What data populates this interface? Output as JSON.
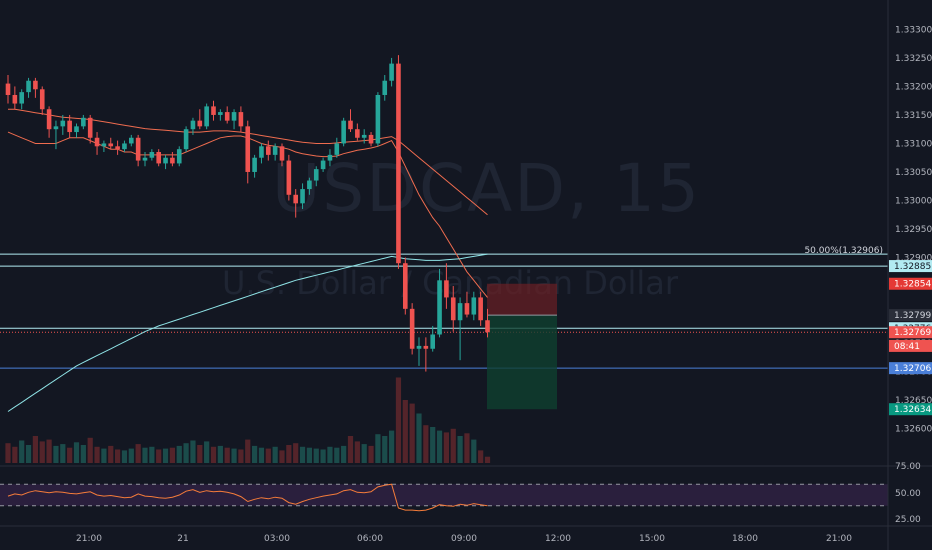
{
  "symbol": {
    "ticker": "USDCAD",
    "interval": "15",
    "watermark_main": "USDCAD, 15",
    "watermark_desc": "U.S. Dollar / Canadian Dollar"
  },
  "colors": {
    "background": "#131722",
    "up": "#26a69a",
    "down": "#ef5350",
    "ma_red": "#ef6c4f",
    "ma_cyan": "#8fe3e6",
    "rsi_line": "#f57c3a",
    "rsi_band": "#2a1f3d"
  },
  "price_axis": {
    "labels": [
      "1.33300",
      "1.33250",
      "1.33200",
      "1.33150",
      "1.33100",
      "1.33050",
      "1.33000",
      "1.32950",
      "1.32900",
      "1.32850",
      "1.32800",
      "1.32750",
      "1.32700",
      "1.32650",
      "1.32600"
    ],
    "min": 1.3258,
    "max": 1.3332
  },
  "price_tags": [
    {
      "name": "level-tag-1",
      "text": "1.32885",
      "value": 1.32885,
      "bg": "#b2ebf2",
      "fg": "#131722"
    },
    {
      "name": "sl-tag",
      "text": "1.32854",
      "value": 1.32854,
      "bg": "#e53935",
      "fg": "#ffffff"
    },
    {
      "name": "entry-tag",
      "text": "1.32799",
      "value": 1.32799,
      "bg": "#2a2e39",
      "fg": "#d1d4dc"
    },
    {
      "name": "level-tag-2",
      "text": "1.32776",
      "value": 1.32776,
      "bg": "#b2ebf2",
      "fg": "#131722"
    },
    {
      "name": "last-price-tag",
      "text": "1.32769",
      "value": 1.32769,
      "bg": "#ef5350",
      "fg": "#ffffff"
    },
    {
      "name": "countdown-tag",
      "text": "08:41",
      "value": 1.32745,
      "bg": "#ef5350",
      "fg": "#ffffff"
    },
    {
      "name": "level-tag-3",
      "text": "1.32706",
      "value": 1.32706,
      "bg": "#4a7fd8",
      "fg": "#ffffff"
    },
    {
      "name": "tp-tag",
      "text": "1.32634",
      "value": 1.32634,
      "bg": "#089981",
      "fg": "#ffffff"
    }
  ],
  "horizontal_levels": [
    {
      "value": 1.32906,
      "color": "#b2ebf2",
      "label": "50.00%(1.32906)"
    },
    {
      "value": 1.32885,
      "color": "#b2ebf2",
      "label": ""
    },
    {
      "value": 1.32776,
      "color": "#b2ebf2",
      "label": ""
    },
    {
      "value": 1.32706,
      "color": "#4a7fd8",
      "label": ""
    }
  ],
  "last_price": 1.32769,
  "rsi_axis": {
    "labels": [
      "75.00",
      "50.00",
      "25.00"
    ],
    "upper": 70,
    "lower": 30
  },
  "time_axis": {
    "labels": [
      "21:00",
      "21",
      "03:00",
      "06:00",
      "09:00",
      "12:00",
      "15:00",
      "18:00",
      "21:00"
    ]
  },
  "chart_data": {
    "type": "candlestick",
    "symbol": "USDCAD",
    "interval_minutes": 15,
    "y_range": [
      1.3258,
      1.3332
    ],
    "candles": [
      [
        1.33205,
        1.3322,
        1.3317,
        1.33185
      ],
      [
        1.33185,
        1.332,
        1.3316,
        1.3317
      ],
      [
        1.3317,
        1.33195,
        1.3316,
        1.3319
      ],
      [
        1.3319,
        1.33215,
        1.3318,
        1.3321
      ],
      [
        1.3321,
        1.33215,
        1.3318,
        1.33195
      ],
      [
        1.33195,
        1.332,
        1.3315,
        1.3316
      ],
      [
        1.3316,
        1.33165,
        1.3311,
        1.33125
      ],
      [
        1.33125,
        1.3314,
        1.3309,
        1.3313
      ],
      [
        1.3313,
        1.3315,
        1.33115,
        1.3314
      ],
      [
        1.3314,
        1.3315,
        1.3311,
        1.3312
      ],
      [
        1.3312,
        1.33135,
        1.3311,
        1.3313
      ],
      [
        1.3313,
        1.3315,
        1.33125,
        1.33145
      ],
      [
        1.33145,
        1.3315,
        1.331,
        1.3311
      ],
      [
        1.3311,
        1.3312,
        1.3308,
        1.33095
      ],
      [
        1.33095,
        1.33105,
        1.33085,
        1.331
      ],
      [
        1.331,
        1.3311,
        1.3309,
        1.33095
      ],
      [
        1.33095,
        1.33105,
        1.3308,
        1.3309
      ],
      [
        1.3309,
        1.33105,
        1.33085,
        1.331
      ],
      [
        1.331,
        1.33115,
        1.33095,
        1.3311
      ],
      [
        1.3311,
        1.33115,
        1.3306,
        1.3307
      ],
      [
        1.3307,
        1.33085,
        1.3306,
        1.33075
      ],
      [
        1.33075,
        1.3309,
        1.3307,
        1.33085
      ],
      [
        1.33085,
        1.3309,
        1.3306,
        1.33065
      ],
      [
        1.33065,
        1.3308,
        1.33055,
        1.33075
      ],
      [
        1.33075,
        1.33085,
        1.3306,
        1.33065
      ],
      [
        1.33065,
        1.33095,
        1.3306,
        1.3309
      ],
      [
        1.3309,
        1.3313,
        1.33085,
        1.33125
      ],
      [
        1.33125,
        1.33145,
        1.33115,
        1.3314
      ],
      [
        1.3314,
        1.3316,
        1.33125,
        1.3313
      ],
      [
        1.3313,
        1.3317,
        1.33125,
        1.33165
      ],
      [
        1.33165,
        1.33175,
        1.3314,
        1.3315
      ],
      [
        1.3315,
        1.3316,
        1.3314,
        1.33155
      ],
      [
        1.33155,
        1.33165,
        1.33135,
        1.3314
      ],
      [
        1.3314,
        1.3316,
        1.33125,
        1.33155
      ],
      [
        1.33155,
        1.33165,
        1.3312,
        1.3313
      ],
      [
        1.3313,
        1.3314,
        1.3303,
        1.3305
      ],
      [
        1.3305,
        1.3308,
        1.3304,
        1.33075
      ],
      [
        1.33075,
        1.331,
        1.33065,
        1.33095
      ],
      [
        1.33095,
        1.33105,
        1.3307,
        1.3308
      ],
      [
        1.3308,
        1.331,
        1.3307,
        1.33095
      ],
      [
        1.33095,
        1.331,
        1.3306,
        1.3307
      ],
      [
        1.3307,
        1.3308,
        1.33,
        1.3301
      ],
      [
        1.3301,
        1.3302,
        1.3297,
        1.32995
      ],
      [
        1.32995,
        1.3303,
        1.32985,
        1.3302
      ],
      [
        1.3302,
        1.3304,
        1.3301,
        1.33035
      ],
      [
        1.33035,
        1.3306,
        1.33025,
        1.33055
      ],
      [
        1.33055,
        1.33075,
        1.3305,
        1.3307
      ],
      [
        1.3307,
        1.3309,
        1.3306,
        1.3308
      ],
      [
        1.3308,
        1.3311,
        1.33075,
        1.331
      ],
      [
        1.331,
        1.33145,
        1.33095,
        1.3314
      ],
      [
        1.3314,
        1.3316,
        1.3312,
        1.33125
      ],
      [
        1.33125,
        1.33135,
        1.33105,
        1.3311
      ],
      [
        1.3311,
        1.33125,
        1.331,
        1.33115
      ],
      [
        1.33115,
        1.3312,
        1.33095,
        1.331
      ],
      [
        1.331,
        1.3319,
        1.33095,
        1.33185
      ],
      [
        1.33185,
        1.3322,
        1.33175,
        1.3321
      ],
      [
        1.3321,
        1.3325,
        1.332,
        1.3324
      ],
      [
        1.3324,
        1.33255,
        1.3288,
        1.3289
      ],
      [
        1.3289,
        1.329,
        1.328,
        1.3281
      ],
      [
        1.3281,
        1.3282,
        1.3273,
        1.3274
      ],
      [
        1.3274,
        1.3276,
        1.3271,
        1.32745
      ],
      [
        1.32745,
        1.3276,
        1.327,
        1.3274
      ],
      [
        1.3274,
        1.3278,
        1.32735,
        1.32765
      ],
      [
        1.32765,
        1.3288,
        1.3276,
        1.3286
      ],
      [
        1.3286,
        1.3289,
        1.3281,
        1.3283
      ],
      [
        1.3283,
        1.3285,
        1.3277,
        1.3279
      ],
      [
        1.3279,
        1.3283,
        1.3272,
        1.3282
      ],
      [
        1.3282,
        1.3284,
        1.32795,
        1.328
      ],
      [
        1.328,
        1.3284,
        1.3279,
        1.3283
      ],
      [
        1.3283,
        1.3284,
        1.3278,
        1.3279
      ],
      [
        1.3279,
        1.3281,
        1.3276,
        1.32769
      ]
    ],
    "volume": [
      22,
      18,
      25,
      20,
      30,
      24,
      26,
      19,
      21,
      17,
      23,
      20,
      28,
      18,
      16,
      19,
      15,
      14,
      16,
      21,
      17,
      18,
      15,
      16,
      17,
      19,
      22,
      25,
      20,
      24,
      18,
      19,
      17,
      16,
      15,
      26,
      19,
      17,
      16,
      18,
      14,
      20,
      22,
      18,
      17,
      16,
      15,
      18,
      17,
      19,
      30,
      24,
      21,
      19,
      32,
      30,
      36,
      95,
      70,
      66,
      55,
      42,
      40,
      36,
      34,
      38,
      30,
      33,
      26,
      14,
      7
    ],
    "ma_red": [
      1.3312,
      1.33115,
      1.3311,
      1.33105,
      1.331,
      1.331,
      1.331,
      1.331,
      1.33105,
      1.3311,
      1.3311,
      1.3311,
      1.33105,
      1.331,
      1.33095,
      1.3309,
      1.3309,
      1.33085,
      1.33085,
      1.3308,
      1.3308,
      1.3308,
      1.3308,
      1.3308,
      1.3308,
      1.3308,
      1.33085,
      1.3309,
      1.33095,
      1.331,
      1.33105,
      1.3311,
      1.33112,
      1.33113,
      1.33113,
      1.3311,
      1.33105,
      1.331,
      1.33097,
      1.33095,
      1.33093,
      1.3309,
      1.33085,
      1.33082,
      1.3308,
      1.33078,
      1.33077,
      1.33077,
      1.33078,
      1.33082,
      1.33085,
      1.33088,
      1.3309,
      1.33092,
      1.33095,
      1.331,
      1.33105,
      1.33085,
      1.3306,
      1.33035,
      1.3301,
      1.3299,
      1.3297,
      1.32955,
      1.32935,
      1.32915,
      1.32895,
      1.32875,
      1.3286,
      1.32845,
      1.3283
    ],
    "ma_orange": [
      1.3316,
      1.3316,
      1.33158,
      1.33156,
      1.33154,
      1.33152,
      1.3315,
      1.33148,
      1.33146,
      1.33145,
      1.33144,
      1.33143,
      1.33142,
      1.3314,
      1.33138,
      1.33136,
      1.33134,
      1.33132,
      1.3313,
      1.33128,
      1.33126,
      1.33125,
      1.33124,
      1.33123,
      1.33122,
      1.33121,
      1.3312,
      1.3312,
      1.3312,
      1.33121,
      1.33122,
      1.33122,
      1.33122,
      1.33121,
      1.3312,
      1.33118,
      1.33116,
      1.33114,
      1.33112,
      1.3311,
      1.33108,
      1.33106,
      1.33104,
      1.33102,
      1.33101,
      1.331,
      1.331,
      1.331,
      1.33101,
      1.33102,
      1.33103,
      1.33104,
      1.33105,
      1.33106,
      1.33108,
      1.3311,
      1.33112,
      1.33105,
      1.33095,
      1.33085,
      1.33075,
      1.33065,
      1.33055,
      1.33045,
      1.33035,
      1.33025,
      1.33015,
      1.33005,
      1.32995,
      1.32985,
      1.32975
    ],
    "ma_cyan": [
      1.3263,
      1.32638,
      1.32646,
      1.32654,
      1.32662,
      1.3267,
      1.32678,
      1.32686,
      1.32694,
      1.32702,
      1.3271,
      1.32716,
      1.32722,
      1.32728,
      1.32734,
      1.3274,
      1.32746,
      1.32752,
      1.32758,
      1.32764,
      1.3277,
      1.32775,
      1.3278,
      1.32784,
      1.32788,
      1.32792,
      1.32796,
      1.328,
      1.32804,
      1.32808,
      1.32812,
      1.32816,
      1.3282,
      1.32824,
      1.32828,
      1.32832,
      1.32836,
      1.3284,
      1.32844,
      1.32848,
      1.32852,
      1.32856,
      1.3286,
      1.32863,
      1.32866,
      1.32869,
      1.32872,
      1.32875,
      1.32878,
      1.32881,
      1.32884,
      1.32887,
      1.3289,
      1.32893,
      1.32896,
      1.32899,
      1.32902,
      1.329,
      1.32898,
      1.32897,
      1.32896,
      1.32895,
      1.32895,
      1.32895,
      1.32896,
      1.32897,
      1.32898,
      1.329,
      1.32902,
      1.32904,
      1.32906
    ],
    "rsi": [
      48,
      52,
      50,
      55,
      58,
      56,
      54,
      56,
      55,
      53,
      52,
      54,
      56,
      50,
      48,
      49,
      47,
      45,
      46,
      52,
      48,
      47,
      45,
      44,
      46,
      50,
      57,
      60,
      55,
      58,
      56,
      57,
      55,
      52,
      47,
      38,
      42,
      45,
      43,
      46,
      44,
      36,
      33,
      38,
      42,
      45,
      48,
      50,
      52,
      58,
      60,
      55,
      54,
      56,
      65,
      68,
      70,
      26,
      22,
      22,
      21,
      22,
      26,
      32,
      30,
      29,
      33,
      31,
      34,
      32,
      30
    ],
    "position": {
      "entry": 1.32799,
      "stop": 1.32854,
      "target": 1.32634
    }
  }
}
